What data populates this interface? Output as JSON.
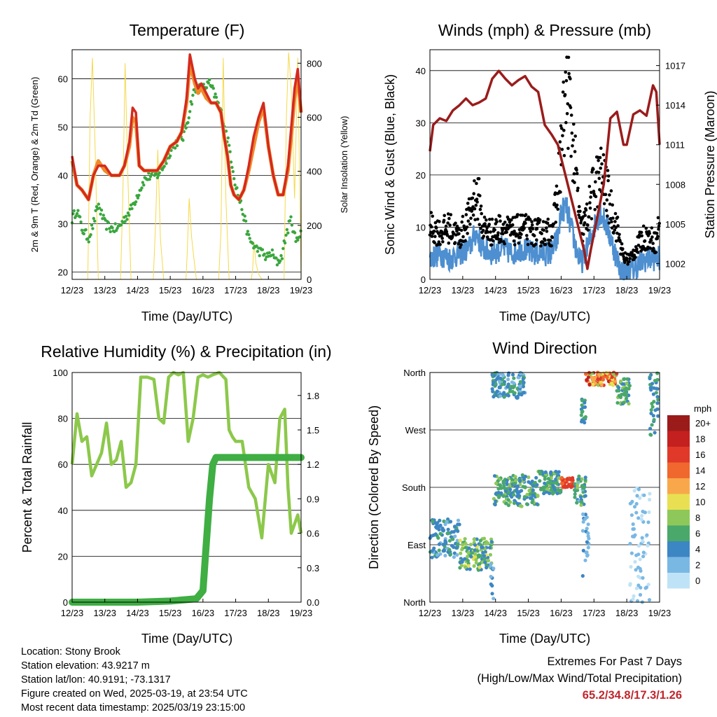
{
  "footer": {
    "location": "Location: Stony Brook",
    "elevation": "Station elevation: 43.9217 m",
    "latlon": "Station lat/lon: 40.9191; -73.1317",
    "created": "Figure created on Wed, 2025-03-19, at 23:54 UTC",
    "recent": "Most recent data timestamp: 2025/03/19 23:15:00",
    "extremes_title": "Extremes For Past 7 Days",
    "extremes_subtitle": "(High/Low/Max Wind/Total Precipitation)",
    "extremes_values": "65.2/34.8/17.3/1.26"
  },
  "colors": {
    "t2m": "#d42a1e",
    "t9m": "#f08a2a",
    "td": "#3aa63e",
    "solar": "#f5d94a",
    "wind": "#4d8fd0",
    "gust": "#000000",
    "pressure": "#9b1c1c",
    "rh": "#8cc84b",
    "rain": "#3fae43"
  },
  "chart_data": [
    {
      "type": "line",
      "title": "Temperature (F)",
      "xlabel": "Time (Day/UTC)",
      "ylabel": "2m & 9m T (Red, Orange) & 2m Td (Green)",
      "ylabel_right": "Solar Insolation (Yellow)",
      "x_ticks": [
        "12/23",
        "13/23",
        "14/23",
        "15/23",
        "16/23",
        "17/23",
        "18/23",
        "19/23"
      ],
      "xlim": [
        0,
        7
      ],
      "ylim": [
        18.5,
        66
      ],
      "y_ticks": [
        20,
        30,
        40,
        50,
        60
      ],
      "ylim_right": [
        0,
        850
      ],
      "y_ticks_right": [
        0,
        200,
        400,
        600,
        800
      ],
      "grid": "horizontal",
      "series": [
        {
          "key": "t2m",
          "x": [
            0,
            0.15,
            0.3,
            0.5,
            0.65,
            0.8,
            1.0,
            1.2,
            1.45,
            1.6,
            1.75,
            1.85,
            1.95,
            2.05,
            2.2,
            2.4,
            2.6,
            2.8,
            3.0,
            3.2,
            3.35,
            3.5,
            3.6,
            3.75,
            3.85,
            3.95,
            4.1,
            4.25,
            4.4,
            4.55,
            4.65,
            4.75,
            4.85,
            4.95,
            5.1,
            5.25,
            5.4,
            5.55,
            5.7,
            5.85,
            6.0,
            6.15,
            6.3,
            6.45,
            6.6,
            6.7,
            6.8,
            6.9,
            7.0
          ],
          "y": [
            44,
            38,
            37,
            35,
            40,
            42,
            42,
            40,
            40,
            42,
            47,
            54,
            53,
            42,
            41,
            41,
            41,
            43,
            46,
            47,
            49,
            56,
            65,
            60,
            58,
            59,
            57,
            55,
            55,
            53,
            48,
            44,
            38,
            36,
            35,
            37,
            42,
            48,
            52,
            55,
            46,
            40,
            36,
            36,
            42,
            50,
            58,
            62,
            53
          ]
        },
        {
          "key": "t9m",
          "x": [
            0,
            0.15,
            0.3,
            0.5,
            0.65,
            0.8,
            1.0,
            1.2,
            1.45,
            1.6,
            1.75,
            1.85,
            1.95,
            2.05,
            2.2,
            2.4,
            2.6,
            2.8,
            3.0,
            3.2,
            3.35,
            3.5,
            3.6,
            3.75,
            3.85,
            3.95,
            4.1,
            4.25,
            4.4,
            4.55,
            4.65,
            4.75,
            4.85,
            4.95,
            5.1,
            5.25,
            5.4,
            5.55,
            5.7,
            5.85,
            6.0,
            6.15,
            6.3,
            6.45,
            6.6,
            6.7,
            6.8,
            6.9,
            7.0
          ],
          "y": [
            43,
            38,
            37,
            35,
            40,
            43,
            41,
            40,
            40,
            42,
            46,
            52,
            51,
            42,
            41,
            41,
            41,
            43,
            46,
            47,
            49,
            55,
            63,
            59,
            57,
            58,
            56,
            55,
            55,
            53,
            48,
            44,
            38,
            36,
            35,
            37,
            41,
            46,
            51,
            54,
            46,
            40,
            36,
            36,
            41,
            48,
            56,
            60,
            53
          ]
        },
        {
          "key": "td",
          "x": [
            0,
            0.15,
            0.3,
            0.5,
            0.65,
            0.8,
            1.0,
            1.2,
            1.4,
            1.6,
            1.8,
            2.0,
            2.2,
            2.4,
            2.6,
            2.8,
            3.0,
            3.2,
            3.4,
            3.55,
            3.7,
            3.85,
            4.0,
            4.2,
            4.4,
            4.6,
            4.8,
            5.0,
            5.2,
            5.4,
            5.6,
            5.8,
            5.95,
            6.1,
            6.25,
            6.4,
            6.55,
            6.7,
            6.85,
            7.0
          ],
          "y": [
            31,
            33,
            29,
            27,
            30,
            34,
            30,
            29,
            29,
            31,
            33,
            36,
            39,
            40,
            40,
            42,
            45,
            47,
            48,
            52,
            57,
            58,
            58,
            59,
            56,
            52,
            46,
            38,
            33,
            27,
            25,
            24,
            23,
            24,
            22,
            23,
            28,
            31,
            26,
            29
          ]
        },
        {
          "key": "solar",
          "axis": "right",
          "x": [
            0,
            0.48,
            0.55,
            0.62,
            0.7,
            0.8,
            1.48,
            1.55,
            1.62,
            1.7,
            1.8,
            2.48,
            2.55,
            2.62,
            2.7,
            2.8,
            3.48,
            3.52,
            3.58,
            3.65,
            3.72,
            3.8,
            4.48,
            4.55,
            4.62,
            4.7,
            4.8,
            5.48,
            5.52,
            5.56,
            5.62,
            5.7,
            5.8,
            6.48,
            6.55,
            6.62,
            6.7,
            6.8,
            6.9,
            7.0
          ],
          "y": [
            0,
            0,
            600,
            820,
            500,
            0,
            0,
            300,
            800,
            400,
            0,
            0,
            200,
            480,
            150,
            0,
            0,
            100,
            300,
            160,
            80,
            0,
            0,
            180,
            820,
            300,
            0,
            0,
            40,
            140,
            60,
            20,
            0,
            0,
            600,
            840,
            700,
            300,
            820,
            0
          ]
        }
      ]
    },
    {
      "type": "scatter",
      "title": "Winds (mph) & Pressure (mb)",
      "xlabel": "Time (Day/UTC)",
      "ylabel": "Sonic Wind & Gust (Blue, Black)",
      "ylabel_right": "Station Pressure (Maroon)",
      "x_ticks": [
        "12/23",
        "13/23",
        "14/23",
        "15/23",
        "16/23",
        "17/23",
        "18/23",
        "19/23"
      ],
      "xlim": [
        0,
        7
      ],
      "ylim": [
        0,
        44
      ],
      "y_ticks": [
        0,
        10,
        20,
        30,
        40
      ],
      "ylim_right": [
        1000.8,
        1018.2
      ],
      "y_ticks_right": [
        1002,
        1005,
        1008,
        1011,
        1014,
        1017
      ],
      "grid": "horizontal",
      "wind": {
        "x": [
          0,
          0.3,
          0.6,
          0.9,
          1.2,
          1.4,
          1.6,
          1.9,
          2.2,
          2.5,
          2.8,
          3.1,
          3.4,
          3.7,
          3.9,
          4.0,
          4.15,
          4.3,
          4.45,
          4.6,
          4.8,
          5.0,
          5.2,
          5.4,
          5.6,
          5.8,
          6.0,
          6.2,
          6.4,
          6.6,
          6.8,
          7.0
        ],
        "y": [
          4,
          5,
          4,
          5,
          6,
          9,
          6,
          5,
          6,
          5,
          6,
          5,
          5,
          5,
          8,
          13,
          14,
          10,
          6,
          3,
          6,
          10,
          13,
          10,
          6,
          2,
          1,
          2,
          3,
          4,
          4,
          4
        ]
      },
      "gust": {
        "x": [
          0,
          0.3,
          0.6,
          0.9,
          1.2,
          1.35,
          1.5,
          1.6,
          1.9,
          2.2,
          2.5,
          2.8,
          3.1,
          3.4,
          3.7,
          3.85,
          4.0,
          4.1,
          4.2,
          4.3,
          4.45,
          4.6,
          4.8,
          5.0,
          5.2,
          5.35,
          5.5,
          5.7,
          5.9,
          6.1,
          6.3,
          6.5,
          6.7,
          6.9,
          7.0
        ],
        "y": [
          10,
          9,
          10,
          8,
          12,
          16,
          15,
          10,
          9,
          10,
          9,
          10,
          9,
          9,
          9,
          14,
          25,
          32,
          36,
          30,
          20,
          9,
          12,
          18,
          20,
          18,
          14,
          10,
          4,
          4,
          6,
          8,
          8,
          7,
          12
        ]
      },
      "pressure": {
        "x": [
          0,
          0.1,
          0.3,
          0.5,
          0.7,
          0.9,
          1.1,
          1.3,
          1.5,
          1.7,
          1.9,
          2.1,
          2.3,
          2.5,
          2.7,
          2.9,
          3.1,
          3.3,
          3.5,
          3.7,
          3.9,
          4.1,
          4.3,
          4.5,
          4.7,
          4.8,
          4.9,
          5.1,
          5.3,
          5.5,
          5.7,
          5.9,
          6.0,
          6.2,
          6.4,
          6.6,
          6.8,
          6.9,
          7.0
        ],
        "y": [
          1010.5,
          1012.5,
          1013,
          1012.8,
          1013.6,
          1014,
          1014.5,
          1014,
          1014.2,
          1014.5,
          1016,
          1016.6,
          1016,
          1015.5,
          1015.9,
          1016.2,
          1015.4,
          1015,
          1012.5,
          1011.8,
          1011,
          1009,
          1007,
          1005,
          1003,
          1001.6,
          1003,
          1005.5,
          1008,
          1013,
          1013.5,
          1011,
          1011,
          1013.3,
          1013.6,
          1013.2,
          1015.5,
          1015,
          1011
        ]
      }
    },
    {
      "type": "line",
      "title": "Relative Humidity (%) & Precipitation (in)",
      "xlabel": "Time (Day/UTC)",
      "ylabel": "Percent & Total Rainfall",
      "x_ticks": [
        "12/23",
        "13/23",
        "14/23",
        "15/23",
        "16/23",
        "17/23",
        "18/23",
        "19/23"
      ],
      "xlim": [
        0,
        7
      ],
      "ylim": [
        0,
        100
      ],
      "y_ticks": [
        0,
        20,
        40,
        60,
        80,
        100
      ],
      "ylim_right": [
        0,
        2.0
      ],
      "y_ticks_right": [
        "0.0",
        "0.3",
        "0.6",
        "0.9",
        "1.2",
        "1.5",
        "1.8"
      ],
      "grid": "horizontal",
      "series": [
        {
          "key": "rh",
          "x": [
            0,
            0.15,
            0.3,
            0.45,
            0.6,
            0.75,
            0.9,
            1.05,
            1.2,
            1.35,
            1.5,
            1.65,
            1.8,
            1.95,
            2.1,
            2.3,
            2.5,
            2.65,
            2.8,
            2.95,
            3.1,
            3.25,
            3.4,
            3.55,
            3.7,
            3.85,
            4.0,
            4.15,
            4.3,
            4.5,
            4.7,
            4.8,
            4.9,
            5.0,
            5.2,
            5.4,
            5.6,
            5.8,
            6.0,
            6.2,
            6.35,
            6.5,
            6.6,
            6.7,
            6.8,
            6.9,
            7.0
          ],
          "y": [
            60,
            82,
            70,
            72,
            55,
            60,
            65,
            78,
            60,
            62,
            70,
            50,
            52,
            60,
            98,
            98,
            97,
            80,
            78,
            98,
            100,
            99,
            100,
            70,
            80,
            98,
            99,
            98,
            99,
            100,
            97,
            75,
            72,
            70,
            70,
            50,
            45,
            28,
            60,
            52,
            80,
            84,
            50,
            30,
            34,
            38,
            30
          ]
        },
        {
          "key": "rain",
          "axis": "right",
          "x": [
            0,
            1,
            2,
            3,
            3.8,
            4.0,
            4.1,
            4.2,
            4.3,
            4.4,
            4.6,
            5,
            6,
            7
          ],
          "y": [
            0,
            0,
            0,
            0.01,
            0.03,
            0.1,
            0.5,
            0.9,
            1.2,
            1.26,
            1.26,
            1.26,
            1.26,
            1.26
          ]
        }
      ]
    },
    {
      "type": "scatter",
      "title": "Wind Direction",
      "xlabel": "Time (Day/UTC)",
      "ylabel": "Direction (Colored By Speed)",
      "x_ticks": [
        "12/23",
        "13/23",
        "14/23",
        "15/23",
        "16/23",
        "17/23",
        "18/23",
        "19/23"
      ],
      "xlim": [
        0,
        7
      ],
      "ylim": [
        0,
        360
      ],
      "y_ticks": [
        "North",
        "East",
        "South",
        "West",
        "North"
      ],
      "grid": "horizontal",
      "legend": {
        "title": "mph",
        "placement": "right",
        "labels": [
          "20+",
          "18",
          "16",
          "14",
          "12",
          "10",
          "8",
          "6",
          "4",
          "2",
          "0"
        ],
        "colors": [
          "#9b1b1b",
          "#c4201f",
          "#e0392a",
          "#f0682d",
          "#f8a84a",
          "#e8e052",
          "#8ec85a",
          "#4aa86a",
          "#3d86c4",
          "#7ab8e4",
          "#bfe3f6"
        ]
      },
      "clusters": [
        {
          "x0": 0,
          "x1": 0.9,
          "d0": 70,
          "d1": 130,
          "s0": 2,
          "s1": 6
        },
        {
          "x0": 0.9,
          "x1": 1.9,
          "d0": 50,
          "d1": 100,
          "s0": 3,
          "s1": 10
        },
        {
          "x0": 1.85,
          "x1": 1.95,
          "d0": 5,
          "d1": 60,
          "s0": 2,
          "s1": 4
        },
        {
          "x0": 1.95,
          "x1": 3.3,
          "d0": 150,
          "d1": 200,
          "s0": 3,
          "s1": 8
        },
        {
          "x0": 3.3,
          "x1": 4.0,
          "d0": 170,
          "d1": 205,
          "s0": 3,
          "s1": 8
        },
        {
          "x0": 4.0,
          "x1": 4.4,
          "d0": 180,
          "d1": 195,
          "s0": 14,
          "s1": 17
        },
        {
          "x0": 4.4,
          "x1": 4.75,
          "d0": 150,
          "d1": 200,
          "s0": 2,
          "s1": 8
        },
        {
          "x0": 4.65,
          "x1": 4.85,
          "d0": 40,
          "d1": 140,
          "s0": 1,
          "s1": 4
        },
        {
          "x0": 4.6,
          "x1": 4.75,
          "d0": 280,
          "d1": 320,
          "s0": 3,
          "s1": 7
        },
        {
          "x0": 4.75,
          "x1": 5.7,
          "d0": 340,
          "d1": 360,
          "s0": 8,
          "s1": 18
        },
        {
          "x0": 5.7,
          "x1": 6.1,
          "d0": 310,
          "d1": 350,
          "s0": 3,
          "s1": 8
        },
        {
          "x0": 6.1,
          "x1": 6.7,
          "d0": 0,
          "d1": 180,
          "s0": 0,
          "s1": 3
        },
        {
          "x0": 6.7,
          "x1": 7.0,
          "d0": 260,
          "d1": 360,
          "s0": 3,
          "s1": 7
        },
        {
          "x0": 1.9,
          "x1": 2.9,
          "d0": 320,
          "d1": 360,
          "s0": 2,
          "s1": 6
        }
      ]
    }
  ]
}
